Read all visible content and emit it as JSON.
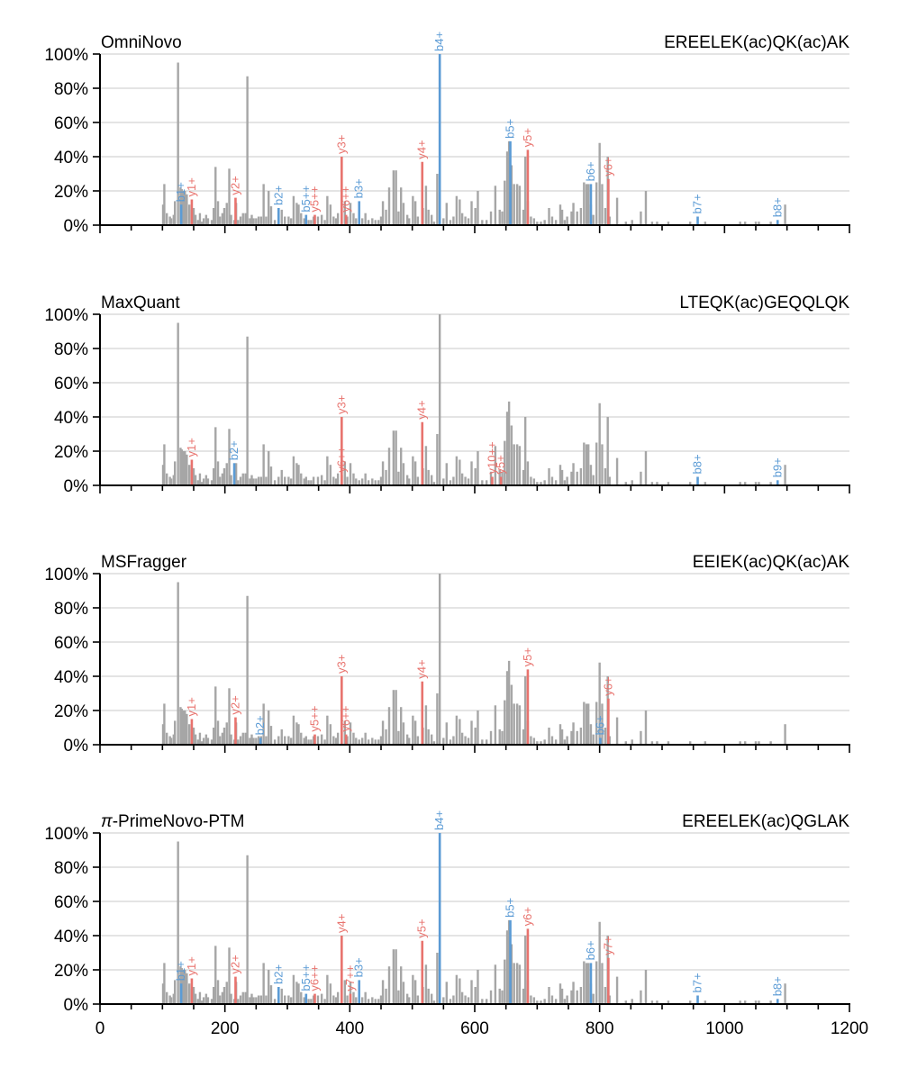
{
  "chart_data": {
    "type": "bar",
    "x_range": [
      0,
      1200
    ],
    "y_range": [
      0,
      100
    ],
    "x_ticks": [
      0,
      200,
      400,
      600,
      800,
      1000,
      1200
    ],
    "y_ticks": [
      0,
      20,
      40,
      60,
      80,
      100
    ],
    "y_tick_labels": [
      "0%",
      "20%",
      "40%",
      "60%",
      "80%",
      "100%"
    ],
    "colors": {
      "unmatched": "#a6a6a6",
      "b_ion": "#5b9bd5",
      "y_ion": "#e8736e",
      "grid": "#d4d4d4"
    },
    "background_peaks": [
      [
        101,
        12
      ],
      [
        103,
        24
      ],
      [
        107,
        7
      ],
      [
        112,
        5
      ],
      [
        114,
        4
      ],
      [
        118,
        6
      ],
      [
        120,
        14
      ],
      [
        125,
        95
      ],
      [
        129,
        22
      ],
      [
        131,
        21
      ],
      [
        134,
        20
      ],
      [
        136,
        20
      ],
      [
        139,
        18
      ],
      [
        143,
        12
      ],
      [
        147,
        9
      ],
      [
        150,
        10
      ],
      [
        153,
        6
      ],
      [
        157,
        3
      ],
      [
        160,
        7
      ],
      [
        163,
        2
      ],
      [
        166,
        4
      ],
      [
        170,
        6
      ],
      [
        173,
        4
      ],
      [
        179,
        3
      ],
      [
        182,
        10
      ],
      [
        185,
        34
      ],
      [
        189,
        14
      ],
      [
        192,
        5
      ],
      [
        196,
        7
      ],
      [
        199,
        10
      ],
      [
        203,
        13
      ],
      [
        207,
        33
      ],
      [
        210,
        6
      ],
      [
        215,
        3
      ],
      [
        218,
        13
      ],
      [
        221,
        3
      ],
      [
        225,
        5
      ],
      [
        229,
        7
      ],
      [
        233,
        7
      ],
      [
        236,
        87
      ],
      [
        240,
        4
      ],
      [
        243,
        6
      ],
      [
        246,
        4
      ],
      [
        250,
        4
      ],
      [
        254,
        5
      ],
      [
        258,
        5
      ],
      [
        262,
        24
      ],
      [
        266,
        5
      ],
      [
        270,
        20
      ],
      [
        274,
        11
      ],
      [
        280,
        3
      ],
      [
        286,
        5
      ],
      [
        291,
        9
      ],
      [
        296,
        5
      ],
      [
        302,
        5
      ],
      [
        306,
        4
      ],
      [
        310,
        17
      ],
      [
        315,
        13
      ],
      [
        318,
        12
      ],
      [
        322,
        7
      ],
      [
        327,
        4
      ],
      [
        330,
        5
      ],
      [
        334,
        3
      ],
      [
        338,
        3
      ],
      [
        342,
        5
      ],
      [
        349,
        5
      ],
      [
        355,
        6
      ],
      [
        360,
        3
      ],
      [
        364,
        17
      ],
      [
        369,
        12
      ],
      [
        374,
        5
      ],
      [
        378,
        4
      ],
      [
        381,
        7
      ],
      [
        387,
        18
      ],
      [
        392,
        14
      ],
      [
        396,
        5
      ],
      [
        401,
        13
      ],
      [
        406,
        7
      ],
      [
        410,
        4
      ],
      [
        415,
        3
      ],
      [
        420,
        4
      ],
      [
        425,
        7
      ],
      [
        430,
        3
      ],
      [
        436,
        4
      ],
      [
        441,
        3
      ],
      [
        446,
        3
      ],
      [
        450,
        5
      ],
      [
        453,
        14
      ],
      [
        458,
        9
      ],
      [
        463,
        22
      ],
      [
        470,
        32
      ],
      [
        474,
        32
      ],
      [
        478,
        8
      ],
      [
        482,
        22
      ],
      [
        486,
        13
      ],
      [
        492,
        6
      ],
      [
        495,
        4
      ],
      [
        501,
        17
      ],
      [
        505,
        14
      ],
      [
        509,
        5
      ],
      [
        517,
        10
      ],
      [
        522,
        23
      ],
      [
        526,
        9
      ],
      [
        531,
        6
      ],
      [
        535,
        2
      ],
      [
        540,
        30
      ],
      [
        544,
        100
      ],
      [
        550,
        4
      ],
      [
        555,
        13
      ],
      [
        561,
        3
      ],
      [
        566,
        5
      ],
      [
        571,
        17
      ],
      [
        576,
        15
      ],
      [
        580,
        7
      ],
      [
        585,
        5
      ],
      [
        590,
        4
      ],
      [
        595,
        14
      ],
      [
        601,
        10
      ],
      [
        605,
        20
      ],
      [
        612,
        3
      ],
      [
        619,
        3
      ],
      [
        626,
        8
      ],
      [
        633,
        23
      ],
      [
        640,
        9
      ],
      [
        644,
        8
      ],
      [
        648,
        26
      ],
      [
        652,
        43
      ],
      [
        655,
        49
      ],
      [
        659,
        35
      ],
      [
        663,
        24
      ],
      [
        668,
        24
      ],
      [
        672,
        23
      ],
      [
        678,
        9
      ],
      [
        681,
        40
      ],
      [
        685,
        14
      ],
      [
        690,
        5
      ],
      [
        695,
        4
      ],
      [
        700,
        2
      ],
      [
        706,
        2
      ],
      [
        712,
        3
      ],
      [
        719,
        10
      ],
      [
        724,
        5
      ],
      [
        730,
        3
      ],
      [
        737,
        12
      ],
      [
        740,
        9
      ],
      [
        744,
        3
      ],
      [
        748,
        5
      ],
      [
        755,
        8
      ],
      [
        758,
        13
      ],
      [
        764,
        8
      ],
      [
        770,
        10
      ],
      [
        775,
        25
      ],
      [
        779,
        24
      ],
      [
        782,
        24
      ],
      [
        786,
        12
      ],
      [
        790,
        6
      ],
      [
        795,
        25
      ],
      [
        800,
        48
      ],
      [
        804,
        24
      ],
      [
        809,
        10
      ],
      [
        813,
        40
      ],
      [
        816,
        5
      ],
      [
        828,
        16
      ],
      [
        842,
        2
      ],
      [
        852,
        3
      ],
      [
        866,
        8
      ],
      [
        874,
        20
      ],
      [
        884,
        2
      ],
      [
        892,
        2
      ],
      [
        910,
        2
      ],
      [
        945,
        2
      ],
      [
        969,
        2
      ],
      [
        1025,
        2
      ],
      [
        1033,
        2
      ],
      [
        1050,
        2
      ],
      [
        1055,
        2
      ],
      [
        1074,
        2
      ],
      [
        1097,
        12
      ]
    ],
    "panels": [
      {
        "method": "OmniNovo",
        "peptide": "EREELEK(ac)QK(ac)AK",
        "ions": [
          {
            "x": 130,
            "y": 12,
            "type": "b",
            "label": "b1+"
          },
          {
            "x": 147,
            "y": 15,
            "type": "y",
            "label": "y1+"
          },
          {
            "x": 217,
            "y": 16,
            "type": "y",
            "label": "y2+"
          },
          {
            "x": 286,
            "y": 10,
            "type": "b",
            "label": "b2+"
          },
          {
            "x": 330,
            "y": 6,
            "type": "b",
            "label": "b5++"
          },
          {
            "x": 344,
            "y": 6,
            "type": "y",
            "label": "y5++"
          },
          {
            "x": 387,
            "y": 40,
            "type": "y",
            "label": "y3+"
          },
          {
            "x": 394,
            "y": 6,
            "type": "y",
            "label": "y6++"
          },
          {
            "x": 415,
            "y": 14,
            "type": "b",
            "label": "b3+"
          },
          {
            "x": 516,
            "y": 37,
            "type": "y",
            "label": "y4+"
          },
          {
            "x": 544,
            "y": 100,
            "type": "b",
            "label": "b4+"
          },
          {
            "x": 657,
            "y": 49,
            "type": "b",
            "label": "b5+"
          },
          {
            "x": 685,
            "y": 44,
            "type": "y",
            "label": "y5+"
          },
          {
            "x": 786,
            "y": 24,
            "type": "b",
            "label": "b6+"
          },
          {
            "x": 814,
            "y": 27,
            "type": "y",
            "label": "y6+"
          },
          {
            "x": 957,
            "y": 5,
            "type": "b",
            "label": "b7+"
          },
          {
            "x": 1085,
            "y": 3,
            "type": "b",
            "label": "b8+"
          }
        ]
      },
      {
        "method": "MaxQuant",
        "peptide": "LTEQK(ac)GEQQLQK",
        "ions": [
          {
            "x": 147,
            "y": 15,
            "type": "y",
            "label": "y1+"
          },
          {
            "x": 215,
            "y": 13,
            "type": "b",
            "label": "b2+"
          },
          {
            "x": 387,
            "y": 40,
            "type": "y",
            "label": "y3+"
          },
          {
            "x": 387,
            "y": 6,
            "type": "y",
            "label": "y6++"
          },
          {
            "x": 516,
            "y": 37,
            "type": "y",
            "label": "y4+"
          },
          {
            "x": 628,
            "y": 5,
            "type": "y",
            "label": "y10++"
          },
          {
            "x": 642,
            "y": 5,
            "type": "y",
            "label": "y5+"
          },
          {
            "x": 957,
            "y": 5,
            "type": "b",
            "label": "b8+"
          },
          {
            "x": 1085,
            "y": 3,
            "type": "b",
            "label": "b9+"
          }
        ]
      },
      {
        "method": "MSFragger",
        "peptide": "EEIEK(ac)QK(ac)AK",
        "ions": [
          {
            "x": 147,
            "y": 15,
            "type": "y",
            "label": "y1+"
          },
          {
            "x": 217,
            "y": 16,
            "type": "y",
            "label": "y2+"
          },
          {
            "x": 257,
            "y": 4,
            "type": "b",
            "label": "b2+"
          },
          {
            "x": 344,
            "y": 6,
            "type": "y",
            "label": "y5++"
          },
          {
            "x": 387,
            "y": 40,
            "type": "y",
            "label": "y3+"
          },
          {
            "x": 394,
            "y": 6,
            "type": "y",
            "label": "y6++"
          },
          {
            "x": 516,
            "y": 37,
            "type": "y",
            "label": "y4+"
          },
          {
            "x": 685,
            "y": 44,
            "type": "y",
            "label": "y5+"
          },
          {
            "x": 801,
            "y": 4,
            "type": "b",
            "label": "b6+"
          },
          {
            "x": 814,
            "y": 27,
            "type": "y",
            "label": "y6+"
          }
        ]
      },
      {
        "method": "π-PrimeNovo-PTM",
        "method_italic_prefix": "π",
        "method_suffix": "-PrimeNovo-PTM",
        "peptide": "EREELEK(ac)QGLAK",
        "ions": [
          {
            "x": 130,
            "y": 12,
            "type": "b",
            "label": "b1+"
          },
          {
            "x": 147,
            "y": 15,
            "type": "y",
            "label": "y1+"
          },
          {
            "x": 217,
            "y": 16,
            "type": "y",
            "label": "y2+"
          },
          {
            "x": 286,
            "y": 10,
            "type": "b",
            "label": "b2+"
          },
          {
            "x": 330,
            "y": 6,
            "type": "b",
            "label": "b5++"
          },
          {
            "x": 344,
            "y": 6,
            "type": "y",
            "label": "y6++"
          },
          {
            "x": 387,
            "y": 40,
            "type": "y",
            "label": "y4+"
          },
          {
            "x": 401,
            "y": 6,
            "type": "y",
            "label": "y7++"
          },
          {
            "x": 415,
            "y": 14,
            "type": "b",
            "label": "b3+"
          },
          {
            "x": 516,
            "y": 37,
            "type": "y",
            "label": "y5+"
          },
          {
            "x": 544,
            "y": 100,
            "type": "b",
            "label": "b4+"
          },
          {
            "x": 657,
            "y": 49,
            "type": "b",
            "label": "b5+"
          },
          {
            "x": 685,
            "y": 44,
            "type": "y",
            "label": "y6+"
          },
          {
            "x": 786,
            "y": 24,
            "type": "b",
            "label": "b6+"
          },
          {
            "x": 814,
            "y": 27,
            "type": "y",
            "label": "y7+"
          },
          {
            "x": 957,
            "y": 5,
            "type": "b",
            "label": "b7+"
          },
          {
            "x": 1085,
            "y": 3,
            "type": "b",
            "label": "b8+"
          }
        ]
      }
    ]
  }
}
